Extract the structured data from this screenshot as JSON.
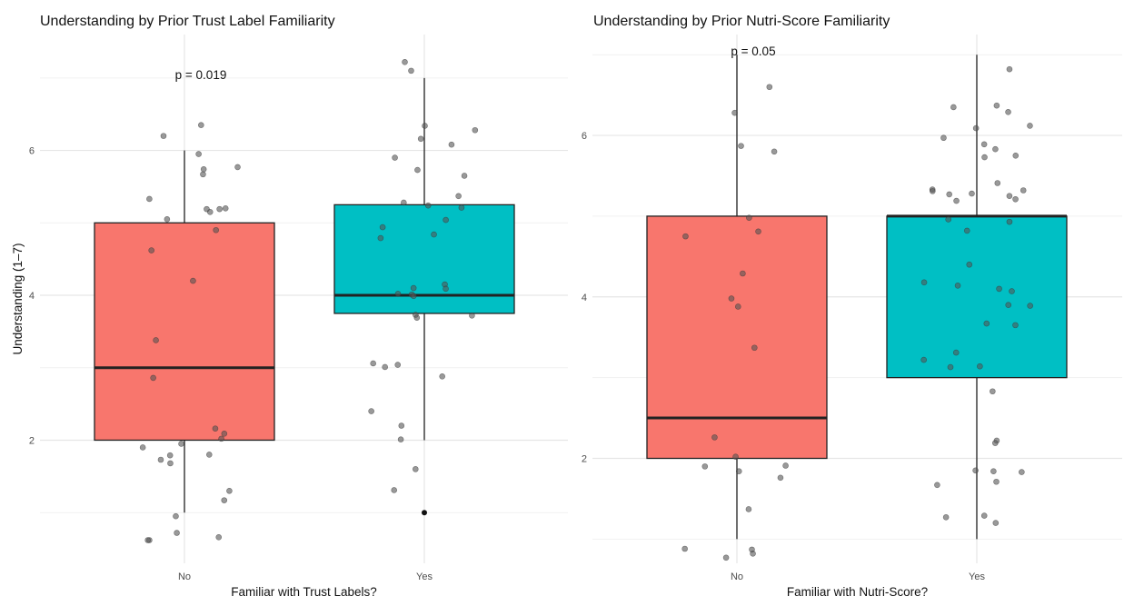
{
  "colors": {
    "no": "#F8766D",
    "yes": "#00BFC4",
    "point": "#555555",
    "median": "#222222"
  },
  "chart_data": [
    {
      "type": "boxplot",
      "title": "Understanding by Prior Trust Label Familiarity",
      "xlabel": "Familiar with Trust Labels?",
      "ylabel": "Understanding (1–7)",
      "categories": [
        "No",
        "Yes"
      ],
      "ylim": [
        0.3,
        7.6
      ],
      "yticks": [
        2,
        4,
        6
      ],
      "grid": true,
      "annotation": {
        "text": "p = 0.019",
        "x": 1,
        "y": 7.05
      },
      "boxes": [
        {
          "category": "No",
          "q1": 2,
          "median": 3,
          "q3": 5,
          "whisker_low": 1,
          "whisker_high": 6,
          "outliers": []
        },
        {
          "category": "Yes",
          "q1": 3.75,
          "median": 4,
          "q3": 5.25,
          "whisker_low": 2,
          "whisker_high": 7,
          "outliers": [
            1
          ]
        }
      ],
      "points": [
        {
          "category": "No",
          "values": [
            6.35,
            6.2,
            5.95,
            5.77,
            5.74,
            5.67,
            5.33,
            5.2,
            5.19,
            5.19,
            5.15,
            5.05,
            4.9,
            4.62,
            4.2,
            3.38,
            2.86,
            2.16,
            2.09,
            2.02,
            1.9,
            1.95,
            1.8,
            1.79,
            1.73,
            1.68,
            1.3,
            1.17,
            0.95,
            0.72,
            0.66,
            0.62,
            0.62
          ]
        },
        {
          "category": "Yes",
          "values": [
            7.22,
            7.1,
            6.34,
            6.28,
            6.16,
            6.08,
            5.9,
            5.73,
            5.65,
            5.37,
            5.28,
            5.24,
            5.21,
            5.04,
            4.94,
            4.84,
            4.79,
            4.15,
            4.1,
            4.09,
            4.02,
            4.01,
            3.99,
            3.73,
            3.72,
            3.69,
            3.06,
            3.04,
            3.01,
            2.88,
            2.4,
            2.2,
            2.01,
            1.6,
            1.31
          ]
        }
      ]
    },
    {
      "type": "boxplot",
      "title": "Understanding by Prior Nutri-Score Familiarity",
      "xlabel": "Familiar with Nutri-Score?",
      "ylabel": "",
      "categories": [
        "No",
        "Yes"
      ],
      "ylim": [
        0.7,
        7.25
      ],
      "yticks": [
        2,
        4,
        6
      ],
      "grid": true,
      "annotation": {
        "text": "p = 0.05",
        "x": 1,
        "y": 7.05
      },
      "boxes": [
        {
          "category": "No",
          "q1": 2,
          "median": 2.5,
          "q3": 5,
          "whisker_low": 1,
          "whisker_high": 7,
          "outliers": []
        },
        {
          "category": "Yes",
          "q1": 3,
          "median": 5,
          "q3": 5,
          "whisker_low": 1,
          "whisker_high": 7,
          "outliers": []
        }
      ],
      "points": [
        {
          "category": "No",
          "values": [
            6.6,
            6.28,
            5.87,
            5.8,
            4.98,
            4.81,
            4.75,
            4.29,
            3.98,
            3.88,
            3.37,
            2.26,
            2.02,
            1.91,
            1.9,
            1.84,
            1.76,
            1.37,
            0.88,
            0.87,
            0.82,
            0.77
          ]
        },
        {
          "category": "Yes",
          "values": [
            6.82,
            6.37,
            6.35,
            6.29,
            6.12,
            6.09,
            5.97,
            5.89,
            5.83,
            5.75,
            5.73,
            5.41,
            5.33,
            5.32,
            5.31,
            5.27,
            5.28,
            5.25,
            5.19,
            5.21,
            4.96,
            4.93,
            4.82,
            4.4,
            4.18,
            4.14,
            4.1,
            4.07,
            3.9,
            3.89,
            3.67,
            3.65,
            3.31,
            3.22,
            3.13,
            3.14,
            2.83,
            2.22,
            2.19,
            1.85,
            1.84,
            1.83,
            1.71,
            1.67,
            1.29,
            1.27,
            1.2
          ]
        }
      ]
    }
  ]
}
